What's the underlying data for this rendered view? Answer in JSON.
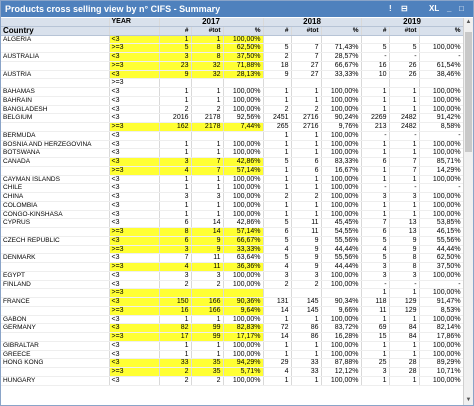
{
  "window": {
    "title": "Products cross selling view by n° CIFS - Summary",
    "controls": [
      "!",
      "⊟",
      "XL",
      "_",
      "□"
    ]
  },
  "header": {
    "year_col": "YEAR",
    "country_col": "Country",
    "years": [
      "2017",
      "2018",
      "2019"
    ],
    "sub": [
      "#",
      "#tot",
      "%"
    ]
  },
  "rows": [
    {
      "c": "ALGERIA",
      "b": "<3",
      "v": [
        "1",
        "1",
        "100,00%",
        "",
        "",
        "",
        "",
        "",
        ""
      ],
      "hl": true
    },
    {
      "c": "",
      "b": ">=3",
      "v": [
        "5",
        "8",
        "62,50%",
        "5",
        "7",
        "71,43%",
        "5",
        "5",
        "100,00%"
      ],
      "hl": true
    },
    {
      "c": "AUSTRALIA",
      "b": "<3",
      "v": [
        "3",
        "8",
        "37,50%",
        "2",
        "7",
        "28,57%",
        "-",
        "-",
        "-"
      ],
      "hl": true
    },
    {
      "c": "",
      "b": ">=3",
      "v": [
        "23",
        "32",
        "71,88%",
        "18",
        "27",
        "66,67%",
        "16",
        "26",
        "61,54%"
      ],
      "hl": true
    },
    {
      "c": "AUSTRIA",
      "b": "<3",
      "v": [
        "9",
        "32",
        "28,13%",
        "9",
        "27",
        "33,33%",
        "10",
        "26",
        "38,46%"
      ],
      "hl": true
    },
    {
      "c": "",
      "b": ">=3",
      "v": [
        "",
        "",
        "",
        "",
        "",
        "",
        "",
        "",
        ""
      ],
      "hl": false
    },
    {
      "c": "BAHAMAS",
      "b": "<3",
      "v": [
        "1",
        "1",
        "100,00%",
        "1",
        "1",
        "100,00%",
        "1",
        "1",
        "100,00%"
      ],
      "hl": false
    },
    {
      "c": "BAHRAIN",
      "b": "<3",
      "v": [
        "1",
        "1",
        "100,00%",
        "1",
        "1",
        "100,00%",
        "1",
        "1",
        "100,00%"
      ],
      "hl": false
    },
    {
      "c": "BANGLADESH",
      "b": "<3",
      "v": [
        "2",
        "2",
        "100,00%",
        "2",
        "2",
        "100,00%",
        "1",
        "1",
        "100,00%"
      ],
      "hl": false
    },
    {
      "c": "BELGIUM",
      "b": "<3",
      "v": [
        "2016",
        "2178",
        "92,56%",
        "2451",
        "2716",
        "90,24%",
        "2269",
        "2482",
        "91,42%"
      ],
      "hl": false
    },
    {
      "c": "",
      "b": ">=3",
      "v": [
        "162",
        "2178",
        "7,44%",
        "265",
        "2716",
        "9,76%",
        "213",
        "2482",
        "8,58%"
      ],
      "hl": true
    },
    {
      "c": "BERMUDA",
      "b": "<3",
      "v": [
        "",
        "",
        "",
        "1",
        "1",
        "100,00%",
        "-",
        "-",
        "-"
      ],
      "hl": false
    },
    {
      "c": "BOSNIA AND HERZEGOVINA",
      "b": "<3",
      "v": [
        "1",
        "1",
        "100,00%",
        "1",
        "1",
        "100,00%",
        "1",
        "1",
        "100,00%"
      ],
      "hl": false
    },
    {
      "c": "BOTSWANA",
      "b": "<3",
      "v": [
        "1",
        "1",
        "100,00%",
        "1",
        "1",
        "100,00%",
        "1",
        "1",
        "100,00%"
      ],
      "hl": false
    },
    {
      "c": "CANADA",
      "b": "<3",
      "v": [
        "3",
        "7",
        "42,86%",
        "5",
        "6",
        "83,33%",
        "6",
        "7",
        "85,71%"
      ],
      "hl": true
    },
    {
      "c": "",
      "b": ">=3",
      "v": [
        "4",
        "7",
        "57,14%",
        "1",
        "6",
        "16,67%",
        "1",
        "7",
        "14,29%"
      ],
      "hl": true
    },
    {
      "c": "CAYMAN ISLANDS",
      "b": "<3",
      "v": [
        "1",
        "1",
        "100,00%",
        "1",
        "1",
        "100,00%",
        "1",
        "1",
        "100,00%"
      ],
      "hl": false
    },
    {
      "c": "CHILE",
      "b": "<3",
      "v": [
        "1",
        "1",
        "100,00%",
        "1",
        "1",
        "100,00%",
        "-",
        "-",
        "-"
      ],
      "hl": false
    },
    {
      "c": "CHINA",
      "b": "<3",
      "v": [
        "3",
        "3",
        "100,00%",
        "2",
        "2",
        "100,00%",
        "3",
        "3",
        "100,00%"
      ],
      "hl": false
    },
    {
      "c": "COLOMBIA",
      "b": "<3",
      "v": [
        "1",
        "1",
        "100,00%",
        "1",
        "1",
        "100,00%",
        "1",
        "1",
        "100,00%"
      ],
      "hl": false
    },
    {
      "c": "CONGO-KINSHASA",
      "b": "<3",
      "v": [
        "1",
        "1",
        "100,00%",
        "1",
        "1",
        "100,00%",
        "1",
        "1",
        "100,00%"
      ],
      "hl": false
    },
    {
      "c": "CYPRUS",
      "b": "<3",
      "v": [
        "6",
        "14",
        "42,86%",
        "5",
        "11",
        "45,45%",
        "7",
        "13",
        "53,85%"
      ],
      "hl": false
    },
    {
      "c": "",
      "b": ">=3",
      "v": [
        "8",
        "14",
        "57,14%",
        "6",
        "11",
        "54,55%",
        "6",
        "13",
        "46,15%"
      ],
      "hl": true
    },
    {
      "c": "CZECH REPUBLIC",
      "b": "<3",
      "v": [
        "6",
        "9",
        "66,67%",
        "5",
        "9",
        "55,56%",
        "5",
        "9",
        "55,56%"
      ],
      "hl": true
    },
    {
      "c": "",
      "b": ">=3",
      "v": [
        "3",
        "9",
        "33,33%",
        "4",
        "9",
        "44,44%",
        "4",
        "9",
        "44,44%"
      ],
      "hl": true
    },
    {
      "c": "DENMARK",
      "b": "<3",
      "v": [
        "7",
        "11",
        "63,64%",
        "5",
        "9",
        "55,56%",
        "5",
        "8",
        "62,50%"
      ],
      "hl": false
    },
    {
      "c": "",
      "b": ">=3",
      "v": [
        "4",
        "11",
        "36,36%",
        "4",
        "9",
        "44,44%",
        "3",
        "8",
        "37,50%"
      ],
      "hl": true
    },
    {
      "c": "EGYPT",
      "b": "<3",
      "v": [
        "3",
        "3",
        "100,00%",
        "3",
        "3",
        "100,00%",
        "3",
        "3",
        "100,00%"
      ],
      "hl": false
    },
    {
      "c": "FINLAND",
      "b": "<3",
      "v": [
        "2",
        "2",
        "100,00%",
        "2",
        "2",
        "100,00%",
        "-",
        "-",
        "-"
      ],
      "hl": false
    },
    {
      "c": "",
      "b": ">=3",
      "v": [
        "",
        "",
        "",
        "",
        "",
        "",
        "1",
        "1",
        "100,00%"
      ],
      "hl": true
    },
    {
      "c": "FRANCE",
      "b": "<3",
      "v": [
        "150",
        "166",
        "90,36%",
        "131",
        "145",
        "90,34%",
        "118",
        "129",
        "91,47%"
      ],
      "hl": true
    },
    {
      "c": "",
      "b": ">=3",
      "v": [
        "16",
        "166",
        "9,64%",
        "14",
        "145",
        "9,66%",
        "11",
        "129",
        "8,53%"
      ],
      "hl": true
    },
    {
      "c": "GABON",
      "b": "<3",
      "v": [
        "1",
        "1",
        "100,00%",
        "1",
        "1",
        "100,00%",
        "1",
        "1",
        "100,00%"
      ],
      "hl": false
    },
    {
      "c": "GERMANY",
      "b": "<3",
      "v": [
        "82",
        "99",
        "82,83%",
        "72",
        "86",
        "83,72%",
        "69",
        "84",
        "82,14%"
      ],
      "hl": true
    },
    {
      "c": "",
      "b": ">=3",
      "v": [
        "17",
        "99",
        "17,17%",
        "14",
        "86",
        "16,28%",
        "15",
        "84",
        "17,86%"
      ],
      "hl": true
    },
    {
      "c": "GIBRALTAR",
      "b": "<3",
      "v": [
        "1",
        "1",
        "100,00%",
        "1",
        "1",
        "100,00%",
        "1",
        "1",
        "100,00%"
      ],
      "hl": false
    },
    {
      "c": "GREECE",
      "b": "<3",
      "v": [
        "1",
        "1",
        "100,00%",
        "1",
        "1",
        "100,00%",
        "1",
        "1",
        "100,00%"
      ],
      "hl": false
    },
    {
      "c": "HONG KONG",
      "b": "<3",
      "v": [
        "33",
        "35",
        "94,29%",
        "29",
        "33",
        "87,88%",
        "25",
        "28",
        "89,29%"
      ],
      "hl": true
    },
    {
      "c": "",
      "b": ">=3",
      "v": [
        "2",
        "35",
        "5,71%",
        "4",
        "33",
        "12,12%",
        "3",
        "28",
        "10,71%"
      ],
      "hl": true
    },
    {
      "c": "HUNGARY",
      "b": "<3",
      "v": [
        "2",
        "2",
        "100,00%",
        "1",
        "1",
        "100,00%",
        "1",
        "1",
        "100,00%"
      ],
      "hl": false
    }
  ]
}
